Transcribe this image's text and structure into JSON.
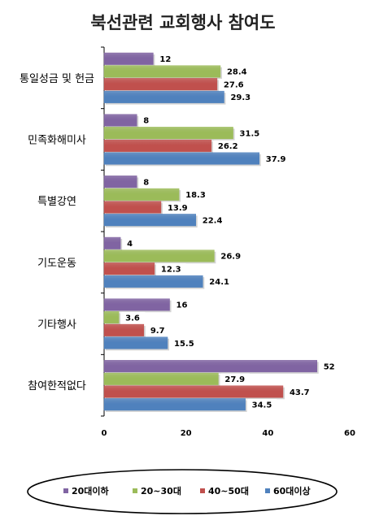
{
  "chart_data": {
    "type": "bar",
    "orientation": "horizontal",
    "title": "북선관련 교회행사 참여도",
    "xlabel": "",
    "ylabel": "",
    "xlim": [
      0,
      60
    ],
    "xticks": [
      "0",
      "20",
      "40",
      "60"
    ],
    "grid": false,
    "legend_position": "bottom",
    "categories": [
      "통일성금 및 헌금",
      "민족화해미사",
      "특별강연",
      "기도운동",
      "기타행사",
      "참여한적없다"
    ],
    "series": [
      {
        "name": "20대이하",
        "color": "#8064A2",
        "values": [
          12,
          8,
          8,
          4,
          16,
          52
        ],
        "labels": [
          "12",
          "8",
          "8",
          "4",
          "16",
          "52"
        ]
      },
      {
        "name": "20~30대",
        "color": "#9BBB59",
        "values": [
          28.4,
          31.5,
          18.3,
          26.9,
          3.6,
          27.9
        ],
        "labels": [
          "28.4",
          "31.5",
          "18.3",
          "26.9",
          "3.6",
          "27.9"
        ]
      },
      {
        "name": "40~50대",
        "color": "#C0504D",
        "values": [
          27.6,
          26.2,
          13.9,
          12.3,
          9.7,
          43.7
        ],
        "labels": [
          "27.6",
          "26.2",
          "13.9",
          "12.3",
          "9.7",
          "43.7"
        ]
      },
      {
        "name": "60대이상",
        "color": "#4F81BD",
        "values": [
          29.3,
          37.9,
          22.4,
          24.1,
          15.5,
          34.5
        ],
        "labels": [
          "29.3",
          "37.9",
          "22.4",
          "24.1",
          "15.5",
          "34.5"
        ]
      }
    ]
  }
}
